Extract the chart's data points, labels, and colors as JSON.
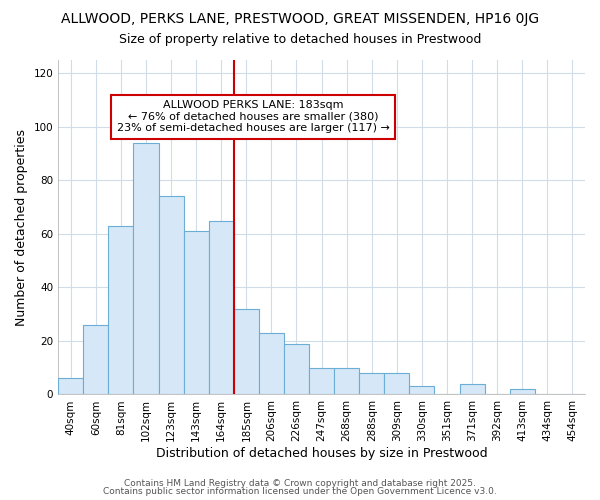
{
  "title_line1": "ALLWOOD, PERKS LANE, PRESTWOOD, GREAT MISSENDEN, HP16 0JG",
  "title_line2": "Size of property relative to detached houses in Prestwood",
  "xlabel": "Distribution of detached houses by size in Prestwood",
  "ylabel": "Number of detached properties",
  "categories": [
    "40sqm",
    "60sqm",
    "81sqm",
    "102sqm",
    "123sqm",
    "143sqm",
    "164sqm",
    "185sqm",
    "206sqm",
    "226sqm",
    "247sqm",
    "268sqm",
    "288sqm",
    "309sqm",
    "330sqm",
    "351sqm",
    "371sqm",
    "392sqm",
    "413sqm",
    "434sqm",
    "454sqm"
  ],
  "values": [
    6,
    26,
    63,
    94,
    74,
    61,
    65,
    32,
    23,
    19,
    10,
    10,
    8,
    8,
    3,
    0,
    4,
    0,
    2,
    0,
    0
  ],
  "bar_color": "#d6e8f7",
  "bar_edge_color": "#6aaed6",
  "vline_color": "#cc0000",
  "annotation_text": "ALLWOOD PERKS LANE: 183sqm\n← 76% of detached houses are smaller (380)\n23% of semi-detached houses are larger (117) →",
  "annotation_box_color": "white",
  "annotation_box_edge_color": "#cc0000",
  "ylim": [
    0,
    125
  ],
  "yticks": [
    0,
    20,
    40,
    60,
    80,
    100,
    120
  ],
  "footer_line1": "Contains HM Land Registry data © Crown copyright and database right 2025.",
  "footer_line2": "Contains public sector information licensed under the Open Government Licence v3.0.",
  "bg_color": "#ffffff",
  "plot_bg_color": "#ffffff",
  "grid_color": "#d0dce8",
  "title_fontsize": 10,
  "subtitle_fontsize": 9,
  "axis_label_fontsize": 9,
  "tick_fontsize": 7.5,
  "annotation_fontsize": 8,
  "footer_fontsize": 6.5
}
